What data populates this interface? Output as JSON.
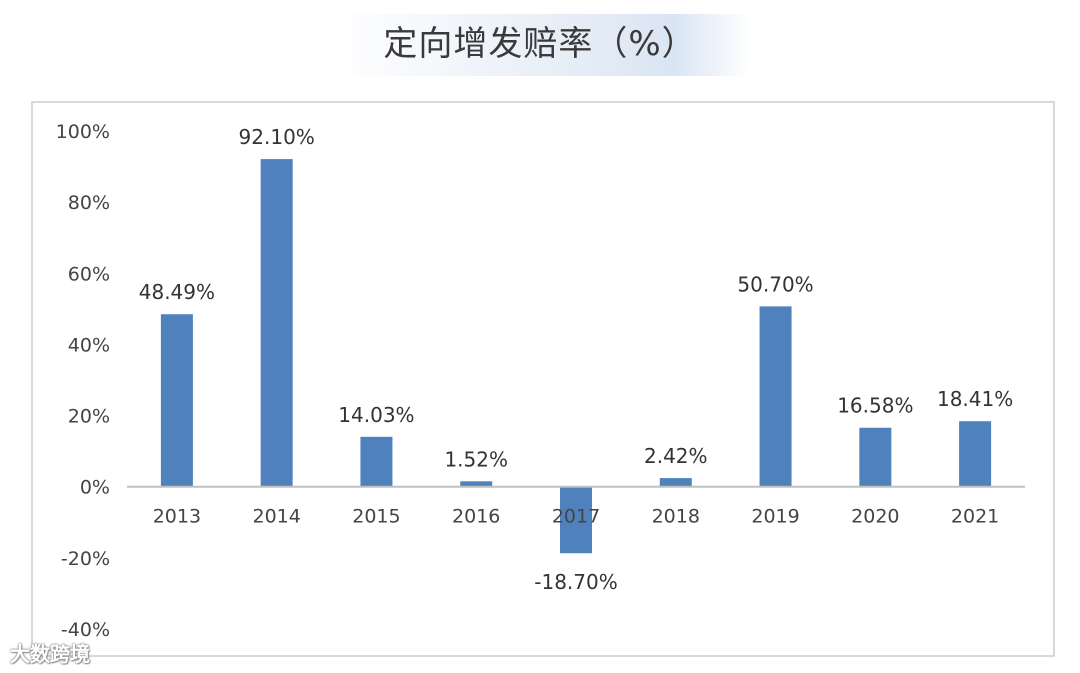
{
  "chart_data": {
    "type": "bar",
    "title": "定向增发赔率（%）",
    "categories": [
      "2013",
      "2014",
      "2015",
      "2016",
      "2017",
      "2018",
      "2019",
      "2020",
      "2021"
    ],
    "values": [
      48.49,
      92.1,
      14.03,
      1.52,
      -18.7,
      2.42,
      50.7,
      16.58,
      18.41
    ],
    "data_labels": [
      "48.49%",
      "92.10%",
      "14.03%",
      "1.52%",
      "-18.70%",
      "2.42%",
      "50.70%",
      "16.58%",
      "18.41%"
    ],
    "ylim": [
      -40,
      100
    ],
    "yticks": [
      100,
      80,
      60,
      40,
      20,
      0,
      -20,
      -40
    ],
    "ytick_labels": [
      "100%",
      "80%",
      "60%",
      "40%",
      "20%",
      "0%",
      "-20%",
      "-40%"
    ],
    "xlabel": "",
    "ylabel": "",
    "grid": false,
    "bar_color": "#4f81bd"
  },
  "watermark": "大数跨境"
}
